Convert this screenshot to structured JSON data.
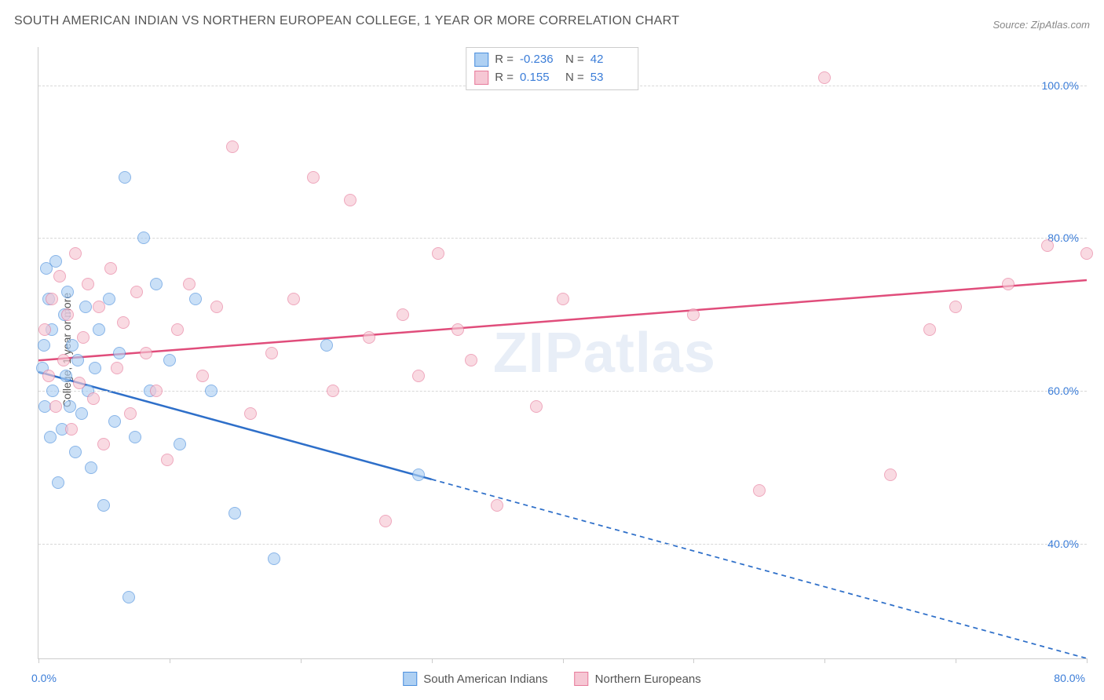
{
  "title": "SOUTH AMERICAN INDIAN VS NORTHERN EUROPEAN COLLEGE, 1 YEAR OR MORE CORRELATION CHART",
  "source_label": "Source: ZipAtlas.com",
  "y_axis_label": "College, 1 year or more",
  "watermark": "ZIPatlas",
  "chart": {
    "type": "scatter",
    "background_color": "#ffffff",
    "grid_color": "#d8d8d8",
    "axis_color": "#cccccc",
    "tick_label_color": "#3b7dd8",
    "title_color": "#555555",
    "title_fontsize": 16,
    "label_fontsize": 14,
    "x_range": [
      0,
      80
    ],
    "y_range": [
      25,
      105
    ],
    "x_ticks": [
      0,
      10,
      20,
      30,
      40,
      50,
      60,
      70,
      80
    ],
    "y_gridlines": [
      40,
      60,
      80,
      100
    ],
    "y_tick_labels": [
      "40.0%",
      "60.0%",
      "80.0%",
      "100.0%"
    ],
    "x_origin_label": "0.0%",
    "x_max_label": "80.0%",
    "point_radius": 8,
    "point_opacity": 0.65
  },
  "series": [
    {
      "name": "South American Indians",
      "fill_color": "#aed0f3",
      "stroke_color": "#4b8fdd",
      "trend": {
        "y_at_x0": 62.5,
        "y_at_xmax": 25,
        "solid_until_x": 30,
        "line_color": "#2e6fc9",
        "line_width": 2.5
      },
      "points": [
        [
          0.3,
          63
        ],
        [
          0.4,
          66
        ],
        [
          0.5,
          58
        ],
        [
          0.6,
          76
        ],
        [
          0.8,
          72
        ],
        [
          0.9,
          54
        ],
        [
          1.0,
          68
        ],
        [
          1.1,
          60
        ],
        [
          1.3,
          77
        ],
        [
          1.5,
          48
        ],
        [
          1.8,
          55
        ],
        [
          2.0,
          70
        ],
        [
          2.1,
          62
        ],
        [
          2.2,
          73
        ],
        [
          2.4,
          58
        ],
        [
          2.6,
          66
        ],
        [
          2.8,
          52
        ],
        [
          3.0,
          64
        ],
        [
          3.3,
          57
        ],
        [
          3.6,
          71
        ],
        [
          3.8,
          60
        ],
        [
          4.0,
          50
        ],
        [
          4.3,
          63
        ],
        [
          4.6,
          68
        ],
        [
          5.0,
          45
        ],
        [
          5.4,
          72
        ],
        [
          5.8,
          56
        ],
        [
          6.2,
          65
        ],
        [
          6.6,
          88
        ],
        [
          6.9,
          33
        ],
        [
          7.4,
          54
        ],
        [
          8.0,
          80
        ],
        [
          8.5,
          60
        ],
        [
          9.0,
          74
        ],
        [
          10.0,
          64
        ],
        [
          10.8,
          53
        ],
        [
          12.0,
          72
        ],
        [
          13.2,
          60
        ],
        [
          15.0,
          44
        ],
        [
          18.0,
          38
        ],
        [
          22.0,
          66
        ],
        [
          29.0,
          49
        ]
      ]
    },
    {
      "name": "Northern Europeans",
      "fill_color": "#f6c7d4",
      "stroke_color": "#e77a9b",
      "trend": {
        "y_at_x0": 64,
        "y_at_xmax": 74.5,
        "solid_until_x": 80,
        "line_color": "#e04d7b",
        "line_width": 2.5
      },
      "points": [
        [
          0.5,
          68
        ],
        [
          0.8,
          62
        ],
        [
          1.0,
          72
        ],
        [
          1.3,
          58
        ],
        [
          1.6,
          75
        ],
        [
          1.9,
          64
        ],
        [
          2.2,
          70
        ],
        [
          2.5,
          55
        ],
        [
          2.8,
          78
        ],
        [
          3.1,
          61
        ],
        [
          3.4,
          67
        ],
        [
          3.8,
          74
        ],
        [
          4.2,
          59
        ],
        [
          4.6,
          71
        ],
        [
          5.0,
          53
        ],
        [
          5.5,
          76
        ],
        [
          6.0,
          63
        ],
        [
          6.5,
          69
        ],
        [
          7.0,
          57
        ],
        [
          7.5,
          73
        ],
        [
          8.2,
          65
        ],
        [
          9.0,
          60
        ],
        [
          9.8,
          51
        ],
        [
          10.6,
          68
        ],
        [
          11.5,
          74
        ],
        [
          12.5,
          62
        ],
        [
          13.6,
          71
        ],
        [
          14.8,
          92
        ],
        [
          16.2,
          57
        ],
        [
          17.8,
          65
        ],
        [
          19.5,
          72
        ],
        [
          21.0,
          88
        ],
        [
          22.5,
          60
        ],
        [
          23.8,
          85
        ],
        [
          25.2,
          67
        ],
        [
          26.5,
          43
        ],
        [
          27.8,
          70
        ],
        [
          29.0,
          62
        ],
        [
          30.5,
          78
        ],
        [
          32.0,
          68
        ],
        [
          33.0,
          64
        ],
        [
          35.0,
          45
        ],
        [
          38.0,
          58
        ],
        [
          40.0,
          72
        ],
        [
          50.0,
          70
        ],
        [
          55.0,
          47
        ],
        [
          60.0,
          101
        ],
        [
          65.0,
          49
        ],
        [
          68.0,
          68
        ],
        [
          70.0,
          71
        ],
        [
          74.0,
          74
        ],
        [
          77.0,
          79
        ],
        [
          80.0,
          78
        ]
      ]
    }
  ],
  "stats_legend": {
    "rows": [
      {
        "swatch_fill": "#aed0f3",
        "swatch_stroke": "#4b8fdd",
        "r_label": "R =",
        "r_value": "-0.236",
        "n_label": "N =",
        "n_value": "42"
      },
      {
        "swatch_fill": "#f6c7d4",
        "swatch_stroke": "#e77a9b",
        "r_label": "R =",
        "r_value": "0.155",
        "n_label": "N =",
        "n_value": "53"
      }
    ]
  },
  "bottom_legend": [
    {
      "swatch_fill": "#aed0f3",
      "swatch_stroke": "#4b8fdd",
      "label": "South American Indians"
    },
    {
      "swatch_fill": "#f6c7d4",
      "swatch_stroke": "#e77a9b",
      "label": "Northern Europeans"
    }
  ]
}
